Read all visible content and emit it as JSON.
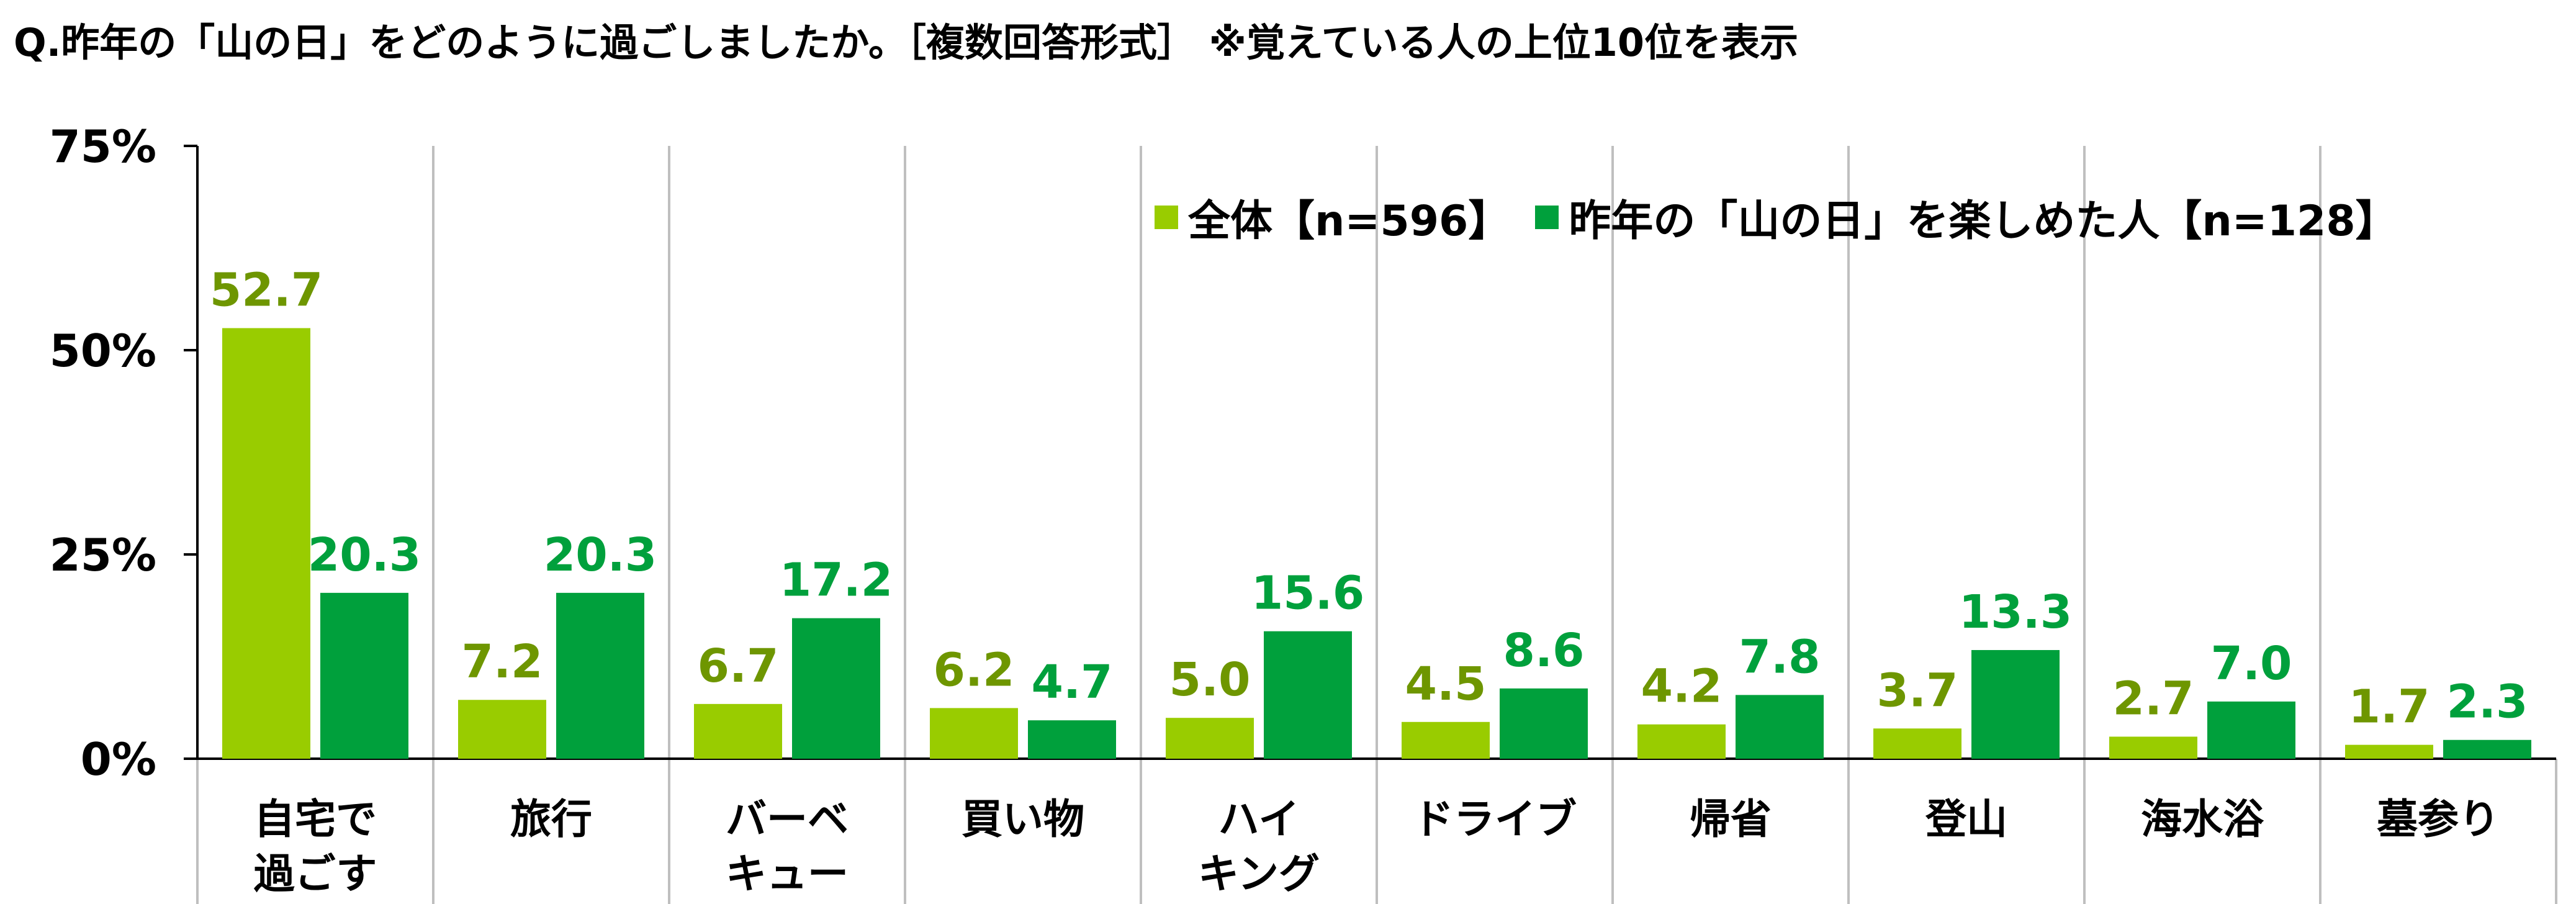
{
  "title": "Q.昨年の「山の日」をどのように過ごしましたか。［複数回答形式］ ※覚えている人の上位10位を表示",
  "colors": {
    "all": "#99cc00",
    "enjoyed": "#00a03c",
    "axis": "#000000",
    "grid": "#bfbfbf",
    "label_all": "#6e9600",
    "label_enjoyed": "#00a03c"
  },
  "chart_data": {
    "type": "bar",
    "categories": [
      [
        "自宅で",
        "過ごす"
      ],
      [
        "旅行"
      ],
      [
        "バーベ",
        "キュー"
      ],
      [
        "買い物"
      ],
      [
        "ハイ",
        "キング"
      ],
      [
        "ドライブ"
      ],
      [
        "帰省"
      ],
      [
        "登山"
      ],
      [
        "海水浴"
      ],
      [
        "墓参り"
      ]
    ],
    "series": [
      {
        "name": "全体【n=596】",
        "values": [
          52.7,
          7.2,
          6.7,
          6.2,
          5.0,
          4.5,
          4.2,
          3.7,
          2.7,
          1.7
        ]
      },
      {
        "name": "昨年の「山の日」を楽しめた人【n=128】",
        "values": [
          20.3,
          20.3,
          17.2,
          4.7,
          15.6,
          8.6,
          7.8,
          13.3,
          7.0,
          2.3
        ]
      }
    ],
    "y_ticks": [
      "0%",
      "25%",
      "50%",
      "75%"
    ],
    "ylim": [
      0,
      75
    ],
    "legend_position": "top-right",
    "grid": "vertical category separators"
  }
}
